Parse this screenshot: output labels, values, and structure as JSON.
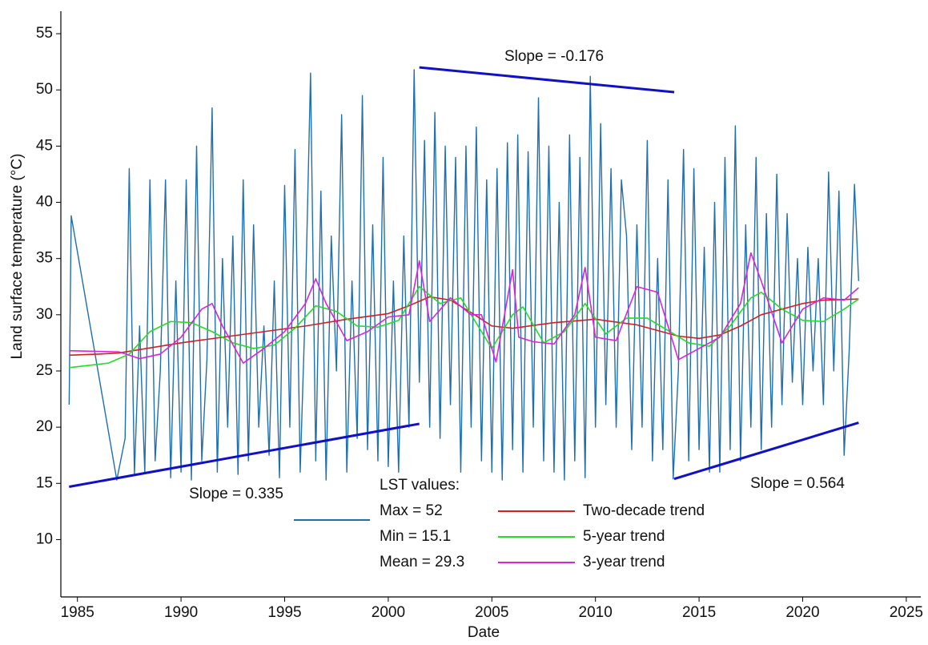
{
  "chart_data": {
    "type": "line",
    "xlabel": "Date",
    "ylabel": "Land surface temperature (°C)",
    "xlim": [
      1984.2,
      2025.7
    ],
    "ylim": [
      4.9,
      57
    ],
    "xticks": [
      1985,
      1990,
      1995,
      2000,
      2005,
      2010,
      2015,
      2020,
      2025
    ],
    "yticks": [
      10,
      15,
      20,
      25,
      30,
      35,
      40,
      45,
      50,
      55
    ],
    "legend_stats": [
      "Max = 52",
      "Min = 15.1",
      "Mean = 29.3"
    ],
    "series": [
      {
        "name": "LST values:",
        "color": "#1f6fb0",
        "x": [
          1984.6,
          1984.7,
          1986.9,
          1987.3,
          1987.5,
          1987.75,
          1988,
          1988.25,
          1988.5,
          1988.75,
          1989,
          1989.25,
          1989.5,
          1989.75,
          1990,
          1990.25,
          1990.5,
          1990.75,
          1991,
          1991.25,
          1991.5,
          1991.75,
          1992,
          1992.25,
          1992.5,
          1992.75,
          1993,
          1993.25,
          1993.5,
          1993.75,
          1994,
          1994.25,
          1994.5,
          1994.75,
          1995,
          1995.25,
          1995.5,
          1995.75,
          1996,
          1996.25,
          1996.5,
          1996.75,
          1997,
          1997.25,
          1997.5,
          1997.75,
          1998,
          1998.25,
          1998.5,
          1998.75,
          1999,
          1999.25,
          1999.5,
          1999.75,
          2000,
          2000.25,
          2000.5,
          2000.75,
          2001,
          2001.25,
          2001.5,
          2001.75,
          2002,
          2002.25,
          2002.5,
          2002.75,
          2003,
          2003.25,
          2003.5,
          2003.75,
          2004,
          2004.25,
          2004.5,
          2004.75,
          2005,
          2005.25,
          2005.5,
          2005.75,
          2006,
          2006.25,
          2006.5,
          2006.75,
          2007,
          2007.25,
          2007.5,
          2007.75,
          2008,
          2008.25,
          2008.5,
          2008.75,
          2009,
          2009.25,
          2009.5,
          2009.75,
          2010,
          2010.25,
          2010.5,
          2010.75,
          2011,
          2011.25,
          2011.5,
          2011.75,
          2012,
          2012.25,
          2012.5,
          2012.75,
          2013,
          2013.25,
          2013.5,
          2013.75,
          2014,
          2014.25,
          2014.5,
          2014.75,
          2015,
          2015.25,
          2015.5,
          2015.75,
          2016,
          2016.25,
          2016.5,
          2016.75,
          2017,
          2017.25,
          2017.5,
          2017.75,
          2018,
          2018.25,
          2018.5,
          2018.75,
          2019,
          2019.25,
          2019.5,
          2019.75,
          2020,
          2020.25,
          2020.5,
          2020.75,
          2021,
          2021.25,
          2021.5,
          2021.75,
          2022,
          2022.25,
          2022.5,
          2022.7
        ],
        "values": [
          22,
          38.8,
          15.3,
          19,
          43,
          15.8,
          29,
          16,
          42,
          17,
          25,
          42,
          15.5,
          33,
          16,
          42,
          15.3,
          45,
          17,
          26,
          48.4,
          16,
          35,
          20,
          37,
          15.8,
          42,
          17,
          38,
          20,
          29,
          17.5,
          33,
          15.5,
          41.5,
          20,
          44.7,
          16,
          31,
          51.5,
          17,
          41,
          15.3,
          37,
          25,
          47.8,
          16,
          33,
          19,
          49.5,
          18,
          38,
          17,
          44,
          16.5,
          33,
          16,
          37,
          20,
          51.8,
          24,
          45.5,
          20,
          48,
          19,
          45,
          22,
          44,
          16,
          45,
          20,
          46.7,
          17,
          42,
          16,
          43,
          15.3,
          45.3,
          18,
          46,
          16,
          44.5,
          20,
          49.3,
          17,
          45,
          16,
          40,
          15.3,
          46,
          17,
          44,
          15.5,
          51.2,
          20,
          47,
          22,
          43,
          20,
          42,
          37,
          18,
          38,
          20,
          45.5,
          17,
          35,
          18,
          42,
          15.4,
          25,
          44.7,
          17,
          43,
          18,
          36,
          16,
          40,
          16,
          44,
          18,
          46.8,
          17,
          38,
          20,
          44,
          18,
          39,
          20,
          42.5,
          22,
          39,
          24,
          35,
          22,
          36,
          25,
          35,
          22,
          42.7,
          25,
          41,
          17.5,
          27,
          41.6,
          33
        ]
      },
      {
        "name": "Two-decade trend",
        "color": "#d42020",
        "x": [
          1984.6,
          1986,
          1987,
          1988,
          1990,
          1992,
          1994,
          1996,
          1998,
          2000,
          2001,
          2002,
          2003,
          2004,
          2005,
          2006,
          2008,
          2010,
          2012,
          2014,
          2015,
          2016,
          2017,
          2018,
          2020,
          2021,
          2022.7
        ],
        "values": [
          26.4,
          26.5,
          26.6,
          26.9,
          27.5,
          28,
          28.5,
          29,
          29.6,
          30.1,
          30.8,
          31.6,
          31.3,
          30.2,
          29,
          28.8,
          29.3,
          29.6,
          29.1,
          28.1,
          27.9,
          28.2,
          29,
          30,
          31,
          31.3,
          31.4
        ]
      },
      {
        "name": "5-year trend",
        "color": "#22dd22",
        "x": [
          1984.6,
          1986.5,
          1987.5,
          1988.5,
          1989.5,
          1990.5,
          1991.5,
          1992.5,
          1993.5,
          1994.5,
          1995.5,
          1996.5,
          1997.5,
          1998.5,
          1999.5,
          2000.5,
          2001.5,
          2002.5,
          2003.5,
          2004.5,
          2005,
          2006,
          2006.5,
          2007.5,
          2008.5,
          2009.5,
          2010.5,
          2011.5,
          2012.5,
          2013.5,
          2014.5,
          2015.5,
          2016.5,
          2017.5,
          2018,
          2019,
          2020,
          2021,
          2022,
          2022.7
        ],
        "values": [
          25.3,
          25.7,
          26.5,
          28.5,
          29.4,
          29.3,
          28.5,
          27.5,
          27,
          27.3,
          28.8,
          30.8,
          30.3,
          29,
          28.9,
          29.5,
          32.5,
          31,
          31.5,
          28.5,
          27,
          30,
          30.7,
          27.5,
          28.5,
          31,
          28.3,
          29.7,
          29.7,
          28.6,
          27.5,
          27.2,
          29,
          31.5,
          32,
          30.5,
          29.5,
          29.4,
          30.5,
          31.4
        ]
      },
      {
        "name": "3-year trend",
        "color": "#dd22dd",
        "x": [
          1984.6,
          1987,
          1988,
          1989,
          1990,
          1991,
          1991.5,
          1992,
          1993,
          1994,
          1995,
          1996,
          1996.5,
          1997,
          1998,
          1999,
          2000,
          2001,
          2001.5,
          2002,
          2003,
          2004,
          2004.5,
          2005.2,
          2006,
          2006.3,
          2007,
          2008,
          2009,
          2009.5,
          2010,
          2011,
          2012,
          2013,
          2014,
          2015,
          2016,
          2017,
          2017.5,
          2018,
          2019,
          2019.5,
          2020,
          2021,
          2022,
          2022.7
        ],
        "values": [
          26.8,
          26.7,
          26.1,
          26.5,
          28,
          30.5,
          31,
          29,
          25.7,
          27,
          28.5,
          31,
          33.2,
          31,
          27.7,
          28.5,
          29.8,
          30,
          34.8,
          29.4,
          31.5,
          30,
          30,
          25.8,
          34,
          28,
          27.6,
          27.4,
          30,
          34.2,
          28,
          27.7,
          32.5,
          32,
          26,
          27,
          28,
          31,
          35.5,
          33,
          27.5,
          29,
          30.5,
          31.5,
          31.3,
          32.4
        ]
      }
    ],
    "trend_lines": [
      {
        "label": "Slope = 0.335",
        "color": "#1010c8",
        "x": [
          1984.6,
          2001.5
        ],
        "values": [
          14.7,
          20.3
        ]
      },
      {
        "label": "Slope = -0.176",
        "color": "#1010c8",
        "x": [
          2001.5,
          2013.8
        ],
        "values": [
          52,
          49.8
        ]
      },
      {
        "label": "Slope = 0.564",
        "color": "#1010c8",
        "x": [
          2013.8,
          2022.7
        ],
        "values": [
          15.4,
          20.4
        ]
      }
    ]
  }
}
